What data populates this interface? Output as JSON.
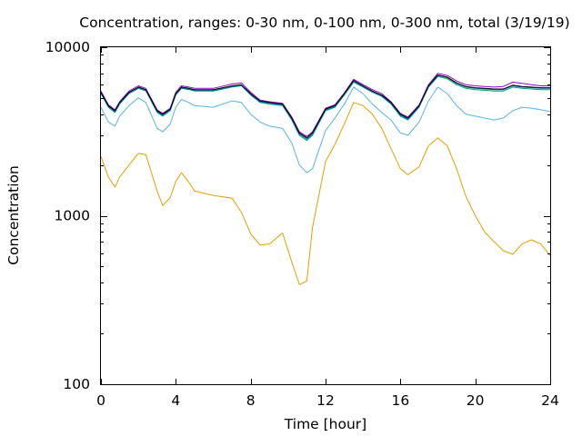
{
  "chart_data": {
    "type": "line",
    "title": "Concentration, ranges: 0-30 nm, 0-100 nm, 0-300 nm, total (3/19/19)",
    "xlabel": "Time [hour]",
    "ylabel": "Concentration",
    "xlim": [
      0,
      24
    ],
    "ylim": [
      100,
      10000
    ],
    "yscale": "log",
    "grid": false,
    "x_ticks": [
      0,
      4,
      8,
      12,
      16,
      20,
      24
    ],
    "x_tick_labels": [
      "0",
      "4",
      "8",
      "12",
      "16",
      "20",
      "24"
    ],
    "y_ticks": [
      100,
      1000,
      10000
    ],
    "y_tick_labels": [
      "100",
      "1000",
      "10000"
    ],
    "x": [
      0,
      0.4,
      0.75,
      1,
      1.5,
      2,
      2.4,
      3,
      3.3,
      3.7,
      4,
      4.3,
      4.7,
      5,
      6,
      7,
      7.5,
      8,
      8.5,
      9,
      9.7,
      10.2,
      10.6,
      11,
      11.3,
      12,
      12.5,
      13,
      13.5,
      14,
      14.5,
      15,
      15.5,
      16,
      16.4,
      17,
      17.5,
      18,
      18.5,
      19,
      19.5,
      20,
      20.5,
      21,
      21.5,
      22,
      22.5,
      23,
      23.5,
      24
    ],
    "series": [
      {
        "color": "#e69f00",
        "values": [
          2250,
          1700,
          1480,
          1700,
          2000,
          2350,
          2300,
          1400,
          1150,
          1280,
          1600,
          1800,
          1580,
          1400,
          1320,
          1270,
          1050,
          780,
          670,
          680,
          790,
          530,
          390,
          410,
          850,
          2100,
          2650,
          3500,
          4700,
          4500,
          4000,
          3300,
          2500,
          1900,
          1750,
          1950,
          2600,
          2900,
          2600,
          1900,
          1300,
          1000,
          800,
          700,
          620,
          590,
          680,
          720,
          680,
          580
        ]
      },
      {
        "color": "#56b4e9",
        "values": [
          4400,
          3600,
          3400,
          3900,
          4500,
          5000,
          4700,
          3300,
          3150,
          3500,
          4400,
          4900,
          4700,
          4500,
          4400,
          4800,
          4700,
          4000,
          3600,
          3400,
          3300,
          2700,
          2000,
          1800,
          1900,
          3200,
          3800,
          4600,
          5800,
          5300,
          4600,
          4100,
          3700,
          3100,
          3000,
          3600,
          4800,
          5800,
          5300,
          4500,
          4000,
          3900,
          3800,
          3700,
          3800,
          4200,
          4400,
          4350,
          4250,
          4150
        ]
      },
      {
        "color": "#009e73",
        "values": [
          5300,
          4400,
          4100,
          4600,
          5300,
          5700,
          5500,
          4100,
          3900,
          4200,
          5200,
          5700,
          5600,
          5500,
          5500,
          5800,
          5900,
          5200,
          4700,
          4600,
          4500,
          3700,
          3000,
          2800,
          3000,
          4200,
          4400,
          5200,
          6200,
          5800,
          5400,
          5100,
          4600,
          3900,
          3700,
          4400,
          5800,
          6700,
          6500,
          6000,
          5700,
          5600,
          5550,
          5500,
          5500,
          5800,
          5700,
          5650,
          5600,
          5600
        ]
      },
      {
        "color": "#0072b2",
        "values": [
          5350,
          4450,
          4150,
          4650,
          5350,
          5750,
          5550,
          4150,
          3950,
          4250,
          5250,
          5750,
          5650,
          5550,
          5550,
          5850,
          5950,
          5250,
          4750,
          4650,
          4550,
          3750,
          3050,
          2850,
          3050,
          4250,
          4450,
          5250,
          6300,
          5850,
          5450,
          5150,
          4650,
          3950,
          3750,
          4450,
          5850,
          6800,
          6600,
          6100,
          5800,
          5700,
          5650,
          5600,
          5600,
          5900,
          5800,
          5750,
          5700,
          5700
        ]
      },
      {
        "color": "#9400d3",
        "values": [
          5500,
          4550,
          4250,
          4750,
          5500,
          5900,
          5700,
          4250,
          4050,
          4350,
          5400,
          5900,
          5800,
          5700,
          5700,
          6050,
          6150,
          5400,
          4850,
          4750,
          4650,
          3850,
          3150,
          2950,
          3150,
          4350,
          4550,
          5350,
          6450,
          6000,
          5600,
          5300,
          4750,
          4050,
          3850,
          4550,
          6000,
          7000,
          6800,
          6300,
          6000,
          5900,
          5850,
          5800,
          5850,
          6200,
          6100,
          6000,
          5900,
          5900
        ]
      },
      {
        "color": "#000000",
        "values": [
          5400,
          4500,
          4200,
          4700,
          5400,
          5800,
          5600,
          4200,
          4000,
          4300,
          5300,
          5800,
          5700,
          5600,
          5600,
          5900,
          6000,
          5300,
          4800,
          4700,
          4600,
          3800,
          3100,
          2900,
          3100,
          4300,
          4500,
          5300,
          6350,
          5900,
          5500,
          5200,
          4700,
          4000,
          3800,
          4500,
          5900,
          6850,
          6650,
          6150,
          5850,
          5750,
          5700,
          5650,
          5650,
          5950,
          5850,
          5800,
          5750,
          5750
        ]
      }
    ]
  }
}
